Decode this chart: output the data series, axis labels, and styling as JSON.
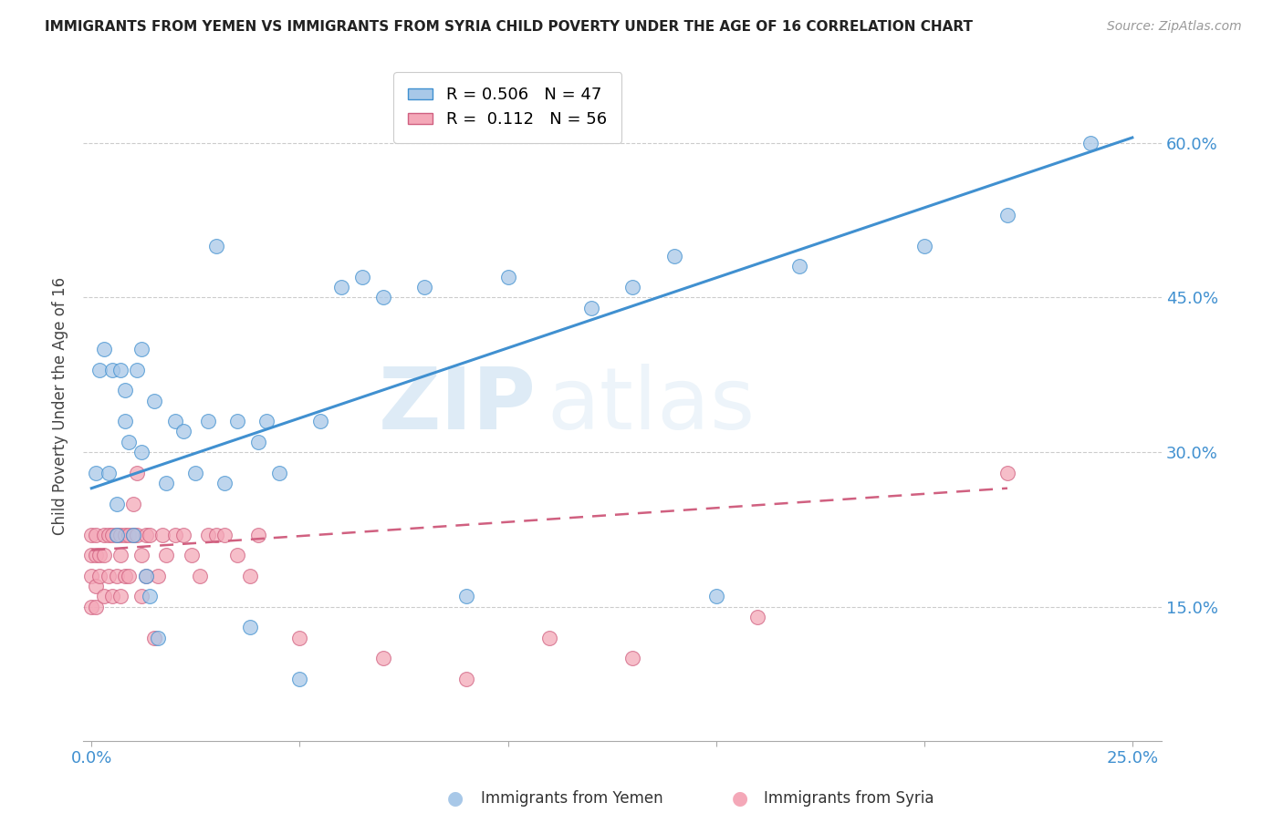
{
  "title": "IMMIGRANTS FROM YEMEN VS IMMIGRANTS FROM SYRIA CHILD POVERTY UNDER THE AGE OF 16 CORRELATION CHART",
  "source": "Source: ZipAtlas.com",
  "ylabel": "Child Poverty Under the Age of 16",
  "yticks": [
    0.15,
    0.3,
    0.45,
    0.6
  ],
  "ytick_labels": [
    "15.0%",
    "30.0%",
    "45.0%",
    "60.0%"
  ],
  "ylim": [
    0.02,
    0.67
  ],
  "xlim": [
    -0.002,
    0.257
  ],
  "legend_r_yemen": "R = 0.506",
  "legend_n_yemen": "N = 47",
  "legend_r_syria": "R =  0.112",
  "legend_n_syria": "N = 56",
  "color_yemen": "#a8c8e8",
  "color_syria": "#f4a8b8",
  "color_trendline_yemen": "#4090d0",
  "color_trendline_syria": "#d06080",
  "label_yemen": "Immigrants from Yemen",
  "label_syria": "Immigrants from Syria",
  "watermark_zip": "ZIP",
  "watermark_atlas": "atlas",
  "trendline_yemen_x0": 0.0,
  "trendline_yemen_x1": 0.25,
  "trendline_yemen_y0": 0.265,
  "trendline_yemen_y1": 0.605,
  "trendline_syria_x0": 0.0,
  "trendline_syria_x1": 0.22,
  "trendline_syria_y0": 0.205,
  "trendline_syria_y1": 0.265,
  "yemen_x": [
    0.001,
    0.002,
    0.003,
    0.004,
    0.005,
    0.006,
    0.006,
    0.007,
    0.008,
    0.008,
    0.009,
    0.01,
    0.011,
    0.012,
    0.012,
    0.013,
    0.014,
    0.015,
    0.016,
    0.018,
    0.02,
    0.022,
    0.025,
    0.028,
    0.03,
    0.032,
    0.035,
    0.038,
    0.04,
    0.042,
    0.045,
    0.05,
    0.055,
    0.06,
    0.065,
    0.07,
    0.08,
    0.09,
    0.1,
    0.12,
    0.13,
    0.14,
    0.15,
    0.17,
    0.2,
    0.22,
    0.24
  ],
  "yemen_y": [
    0.28,
    0.38,
    0.4,
    0.28,
    0.38,
    0.25,
    0.22,
    0.38,
    0.36,
    0.33,
    0.31,
    0.22,
    0.38,
    0.4,
    0.3,
    0.18,
    0.16,
    0.35,
    0.12,
    0.27,
    0.33,
    0.32,
    0.28,
    0.33,
    0.5,
    0.27,
    0.33,
    0.13,
    0.31,
    0.33,
    0.28,
    0.08,
    0.33,
    0.46,
    0.47,
    0.45,
    0.46,
    0.16,
    0.47,
    0.44,
    0.46,
    0.49,
    0.16,
    0.48,
    0.5,
    0.53,
    0.6
  ],
  "syria_x": [
    0.0,
    0.0,
    0.0,
    0.0,
    0.001,
    0.001,
    0.001,
    0.001,
    0.002,
    0.002,
    0.003,
    0.003,
    0.003,
    0.004,
    0.004,
    0.005,
    0.005,
    0.006,
    0.006,
    0.007,
    0.007,
    0.007,
    0.008,
    0.008,
    0.009,
    0.009,
    0.01,
    0.01,
    0.011,
    0.011,
    0.012,
    0.012,
    0.013,
    0.013,
    0.014,
    0.015,
    0.016,
    0.017,
    0.018,
    0.02,
    0.022,
    0.024,
    0.026,
    0.028,
    0.03,
    0.032,
    0.035,
    0.038,
    0.04,
    0.05,
    0.07,
    0.09,
    0.11,
    0.13,
    0.16,
    0.22
  ],
  "syria_y": [
    0.22,
    0.2,
    0.18,
    0.15,
    0.22,
    0.2,
    0.17,
    0.15,
    0.2,
    0.18,
    0.22,
    0.2,
    0.16,
    0.22,
    0.18,
    0.22,
    0.16,
    0.22,
    0.18,
    0.22,
    0.2,
    0.16,
    0.22,
    0.18,
    0.22,
    0.18,
    0.25,
    0.22,
    0.28,
    0.22,
    0.2,
    0.16,
    0.22,
    0.18,
    0.22,
    0.12,
    0.18,
    0.22,
    0.2,
    0.22,
    0.22,
    0.2,
    0.18,
    0.22,
    0.22,
    0.22,
    0.2,
    0.18,
    0.22,
    0.12,
    0.1,
    0.08,
    0.12,
    0.1,
    0.14,
    0.28
  ]
}
